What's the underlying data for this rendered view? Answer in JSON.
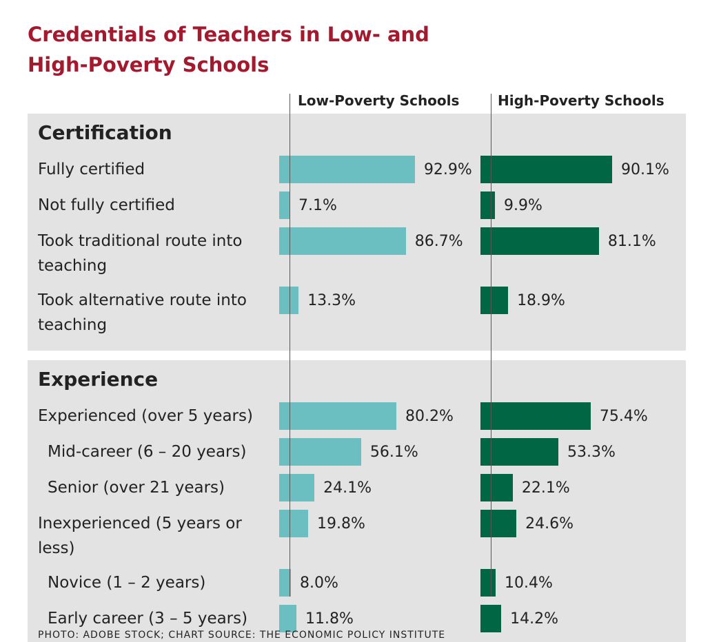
{
  "chart_data": {
    "type": "bar",
    "title": "Credentials of Teachers in Low- and High-Poverty Schools",
    "series_names": [
      "Low-Poverty Schools",
      "High-Poverty Schools"
    ],
    "colors": [
      "#6bbfc0",
      "#006644"
    ],
    "xlim": [
      0,
      100
    ],
    "sections": [
      {
        "name": "Certification",
        "categories": [
          "Fully certified",
          "Not fully certified",
          "Took traditional route into teaching",
          "Took alternative route into teaching"
        ],
        "sublevel": [
          false,
          false,
          false,
          false
        ],
        "series": [
          {
            "name": "Low-Poverty Schools",
            "values": [
              92.9,
              7.1,
              86.7,
              13.3
            ],
            "value_labels": [
              "92.9%",
              "7.1%",
              "86.7%",
              "13.3%"
            ]
          },
          {
            "name": "High-Poverty Schools",
            "values": [
              90.1,
              9.9,
              81.1,
              18.9
            ],
            "value_labels": [
              "90.1%",
              "9.9%",
              "81.1%",
              "18.9%"
            ]
          }
        ]
      },
      {
        "name": "Experience",
        "categories": [
          "Experienced (over 5 years)",
          "Mid-career (6 – 20 years)",
          "Senior (over 21 years)",
          "Inexperienced (5 years or less)",
          "Novice (1 – 2 years)",
          "Early career (3 – 5 years)"
        ],
        "sublevel": [
          false,
          true,
          true,
          false,
          true,
          true
        ],
        "series": [
          {
            "name": "Low-Poverty Schools",
            "values": [
              80.2,
              56.1,
              24.1,
              19.8,
              8.0,
              11.8
            ],
            "value_labels": [
              "80.2%",
              "56.1%",
              "24.1%",
              "19.8%",
              "8.0%",
              "11.8%"
            ]
          },
          {
            "name": "High-Poverty Schools",
            "values": [
              75.4,
              53.3,
              22.1,
              24.6,
              10.4,
              14.2
            ],
            "value_labels": [
              "75.4%",
              "53.3%",
              "22.1%",
              "24.6%",
              "10.4%",
              "14.2%"
            ]
          }
        ]
      }
    ],
    "source": "PHOTO: ADOBE STOCK; CHART SOURCE: THE ECONOMIC POLICY INSTITUTE"
  }
}
